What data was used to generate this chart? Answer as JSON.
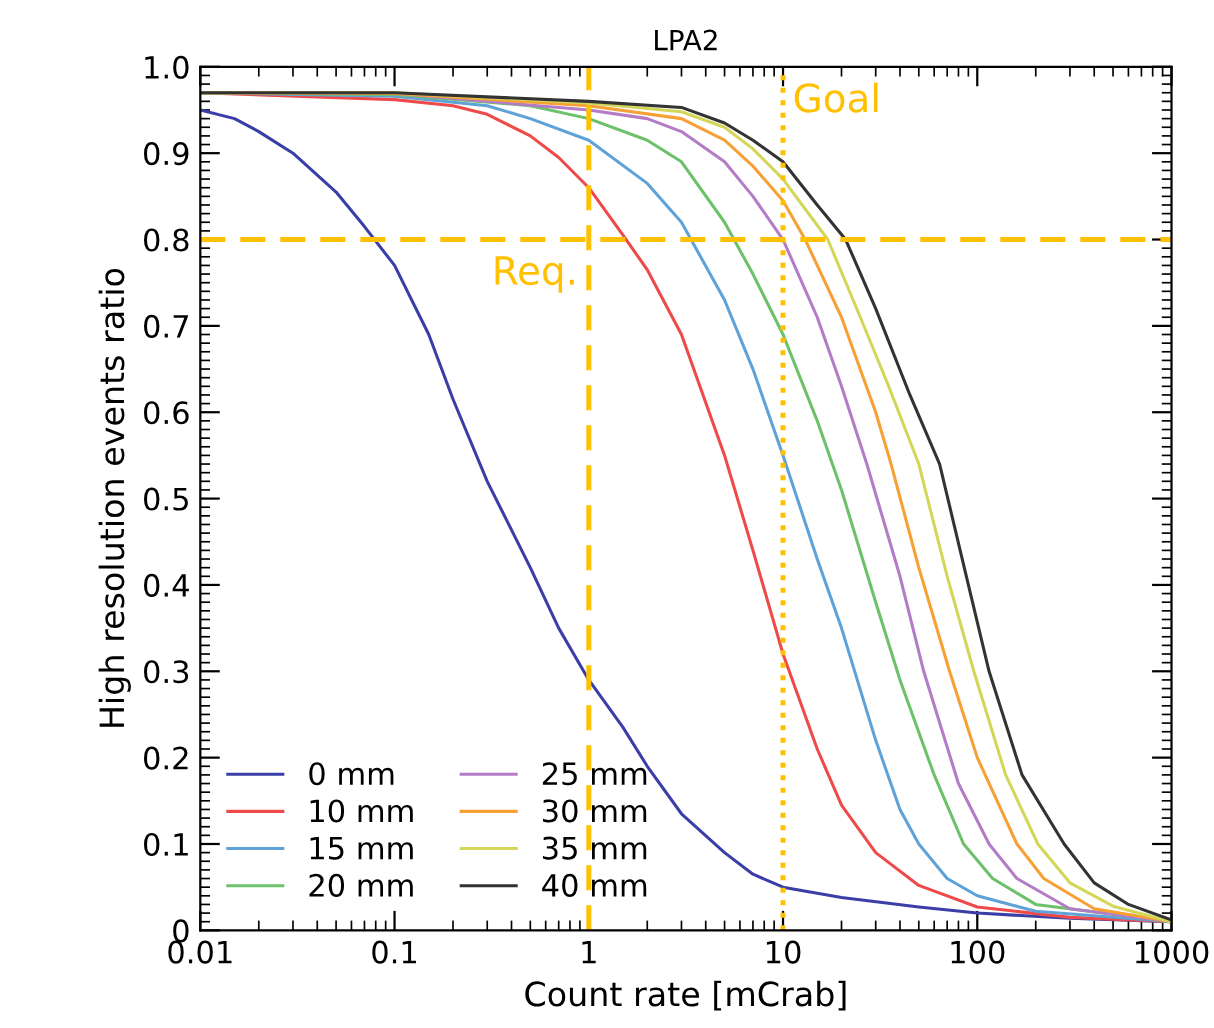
{
  "chart_data": {
    "type": "line",
    "title": "LPA2",
    "xlabel": "Count rate [mCrab]",
    "ylabel": "High resolution events ratio",
    "log": "x",
    "xlim": [
      0.01,
      1000
    ],
    "xticks": [
      0.01,
      0.1,
      1,
      10,
      100,
      1000
    ],
    "ylim": [
      0,
      1
    ],
    "yticks": [
      0,
      0.1,
      0.2,
      0.3,
      0.4,
      0.5,
      0.6,
      0.7,
      0.8,
      0.9,
      {
        "value": 1,
        "label": "1.0"
      }
    ],
    "grid": false,
    "legend": "bottom left",
    "marker": "none",
    "line_style": "solid",
    "ref_lines": [
      {
        "axis": "y",
        "value": 0.8,
        "label": null,
        "color": "#ffc000",
        "line_style": "dashed"
      },
      {
        "axis": "x",
        "value": 1,
        "label": "Req.",
        "color": "#ffc000",
        "line_style": "dashed"
      },
      {
        "axis": "x",
        "value": 10,
        "label": "Goal",
        "color": "#ffc000",
        "line_style": "dotted"
      }
    ],
    "series": [
      {
        "name": "0 mm",
        "color": "#3a3fa8",
        "x": [
          0.01,
          0.015,
          0.02,
          0.03,
          0.05,
          0.07,
          0.1,
          0.15,
          0.2,
          0.3,
          0.5,
          0.7,
          1,
          1.5,
          2,
          3,
          5,
          7,
          10,
          20,
          50,
          100,
          300,
          1000
        ],
        "values": [
          0.95,
          0.94,
          0.925,
          0.9,
          0.855,
          0.815,
          0.77,
          0.69,
          0.615,
          0.52,
          0.42,
          0.35,
          0.29,
          0.235,
          0.19,
          0.135,
          0.09,
          0.065,
          0.05,
          0.038,
          0.027,
          0.02,
          0.014,
          0.01
        ]
      },
      {
        "name": "10 mm",
        "color": "#ef4a4a",
        "x": [
          0.01,
          0.1,
          0.2,
          0.3,
          0.5,
          0.7,
          1,
          1.5,
          2,
          3,
          5,
          7,
          10,
          15,
          20,
          30,
          50,
          100,
          300,
          1000
        ],
        "values": [
          0.97,
          0.962,
          0.955,
          0.945,
          0.92,
          0.895,
          0.86,
          0.805,
          0.765,
          0.69,
          0.55,
          0.44,
          0.32,
          0.21,
          0.145,
          0.09,
          0.052,
          0.027,
          0.015,
          0.01
        ]
      },
      {
        "name": "15 mm",
        "color": "#5fa2d8",
        "x": [
          0.01,
          0.1,
          0.3,
          0.5,
          1,
          2,
          3,
          5,
          7,
          10,
          15,
          20,
          30,
          40,
          50,
          70,
          100,
          200,
          1000
        ],
        "values": [
          0.97,
          0.966,
          0.955,
          0.94,
          0.915,
          0.865,
          0.82,
          0.73,
          0.65,
          0.55,
          0.43,
          0.35,
          0.22,
          0.14,
          0.1,
          0.06,
          0.04,
          0.022,
          0.01
        ]
      },
      {
        "name": "20 mm",
        "color": "#6cc16a",
        "x": [
          0.01,
          0.1,
          0.5,
          1,
          2,
          3,
          5,
          7,
          10,
          15,
          20,
          30,
          40,
          60,
          85,
          120,
          200,
          1000
        ],
        "values": [
          0.97,
          0.968,
          0.955,
          0.94,
          0.915,
          0.89,
          0.82,
          0.76,
          0.69,
          0.59,
          0.51,
          0.38,
          0.29,
          0.18,
          0.1,
          0.06,
          0.03,
          0.01
        ]
      },
      {
        "name": "25 mm",
        "color": "#b37cc6",
        "x": [
          0.01,
          0.1,
          1,
          2,
          3,
          5,
          7,
          10,
          15,
          20,
          27,
          40,
          53,
          80,
          115,
          160,
          300,
          1000
        ],
        "values": [
          0.97,
          0.969,
          0.95,
          0.94,
          0.925,
          0.89,
          0.85,
          0.8,
          0.71,
          0.63,
          0.54,
          0.41,
          0.3,
          0.17,
          0.1,
          0.06,
          0.025,
          0.01
        ]
      },
      {
        "name": "30 mm",
        "color": "#f7a036",
        "x": [
          0.01,
          0.1,
          1,
          3,
          5,
          7,
          10,
          13,
          20,
          30,
          36,
          50,
          72,
          100,
          160,
          220,
          400,
          1000
        ],
        "values": [
          0.97,
          0.969,
          0.955,
          0.94,
          0.915,
          0.885,
          0.845,
          0.8,
          0.71,
          0.6,
          0.54,
          0.42,
          0.3,
          0.2,
          0.1,
          0.06,
          0.025,
          0.01
        ]
      },
      {
        "name": "35 mm",
        "color": "#d4d65a",
        "x": [
          0.01,
          0.1,
          1,
          3,
          5,
          7,
          10,
          17,
          25,
          35,
          50,
          70,
          96,
          140,
          205,
          300,
          500,
          1000
        ],
        "values": [
          0.97,
          0.97,
          0.958,
          0.948,
          0.93,
          0.905,
          0.87,
          0.8,
          0.71,
          0.63,
          0.54,
          0.41,
          0.3,
          0.18,
          0.1,
          0.055,
          0.028,
          0.01
        ]
      },
      {
        "name": "40 mm",
        "color": "#333333",
        "x": [
          0.01,
          0.1,
          1,
          3,
          5,
          7,
          10,
          15,
          21,
          30,
          45,
          64,
          90,
          115,
          170,
          280,
          400,
          600,
          1000
        ],
        "values": [
          0.97,
          0.97,
          0.96,
          0.953,
          0.935,
          0.915,
          0.89,
          0.84,
          0.8,
          0.72,
          0.62,
          0.54,
          0.4,
          0.3,
          0.18,
          0.1,
          0.055,
          0.03,
          0.012
        ]
      }
    ]
  }
}
